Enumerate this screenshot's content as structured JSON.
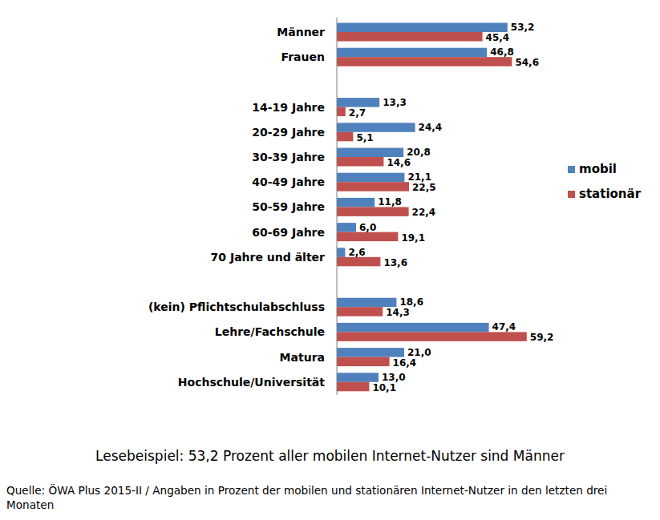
{
  "chart_data": {
    "type": "bar",
    "orientation": "horizontal",
    "data_labels": true,
    "tick_labels": "y",
    "grid": false,
    "legend": "right",
    "xlim": [
      0,
      60
    ],
    "categories": [
      "Männer",
      "Frauen",
      null,
      "14-19 Jahre",
      "20-29 Jahre",
      "30-39 Jahre",
      "40-49 Jahre",
      "50-59 Jahre",
      "60-69 Jahre",
      "70 Jahre und älter",
      null,
      "(kein) Pflichtschulabschluss",
      "Lehre/Fachschule",
      "Matura",
      "Hochschule/Universität"
    ],
    "series": [
      {
        "name": "mobil",
        "color": "#4f81bd",
        "values": [
          53.2,
          46.8,
          null,
          13.3,
          24.4,
          20.8,
          21.1,
          11.8,
          6.0,
          2.6,
          null,
          18.6,
          47.4,
          21.0,
          13.0
        ],
        "value_labels": [
          "53,2",
          "46,8",
          null,
          "13,3",
          "24,4",
          "20,8",
          "21,1",
          "11,8",
          "6,0",
          "2,6",
          null,
          "18,6",
          "47,4",
          "21,0",
          "13,0"
        ]
      },
      {
        "name": "stationär",
        "color": "#c0504d",
        "values": [
          45.4,
          54.6,
          null,
          2.7,
          5.1,
          14.6,
          22.5,
          22.4,
          19.1,
          13.6,
          null,
          14.3,
          59.2,
          16.4,
          10.1
        ],
        "value_labels": [
          "45,4",
          "54,6",
          null,
          "2,7",
          "5,1",
          "14,6",
          "22,5",
          "22,4",
          "19,1",
          "13,6",
          null,
          "14,3",
          "59,2",
          "16,4",
          "10,1"
        ]
      }
    ],
    "annotations": [
      "Lesebeispiel: 53,2 Prozent aller mobilen Internet-Nutzer sind Männer",
      "Quelle: ÖWA Plus 2015-II / Angaben in Prozent der mobilen und stationären Internet-Nutzer in den letzten drei Monaten"
    ]
  }
}
